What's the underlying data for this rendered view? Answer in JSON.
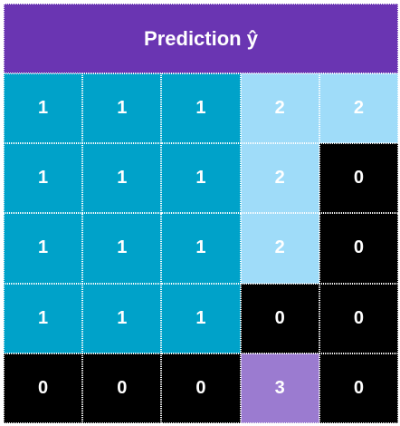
{
  "header": {
    "title": "Prediction ŷ"
  },
  "palette": {
    "0": "#000000",
    "1": "#00a2c9",
    "2": "#9fdcf9",
    "3": "#9b7bd0"
  },
  "grid": {
    "rows": [
      [
        "1",
        "1",
        "1",
        "2",
        "2"
      ],
      [
        "1",
        "1",
        "1",
        "2",
        "0"
      ],
      [
        "1",
        "1",
        "1",
        "2",
        "0"
      ],
      [
        "1",
        "1",
        "1",
        "0",
        "0"
      ],
      [
        "0",
        "0",
        "0",
        "3",
        "0"
      ]
    ]
  }
}
